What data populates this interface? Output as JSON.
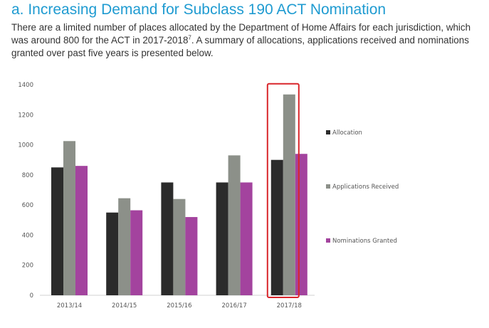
{
  "heading": "a. Increasing Demand for Subclass 190 ACT Nomination",
  "intro": {
    "text": "There are a limited number of places allocated by the Department of Home Affairs for each jurisdiction, which was around 800 for the ACT in 2017-2018",
    "footnote": "7",
    "text_after": ". A summary of allocations, applications received and nominations granted over past five years is presented below."
  },
  "chart_data": {
    "type": "bar",
    "categories": [
      "2013/14",
      "2014/15",
      "2015/16",
      "2016/17",
      "2017/18"
    ],
    "series": [
      {
        "name": "Allocation",
        "values": [
          850,
          550,
          750,
          750,
          900
        ],
        "color": "#2b2b2b"
      },
      {
        "name": "Applications Received",
        "values": [
          1025,
          645,
          640,
          930,
          1335
        ],
        "color": "#8c9089"
      },
      {
        "name": "Nominations Granted",
        "values": [
          860,
          565,
          520,
          750,
          940
        ],
        "color": "#a3439e"
      }
    ],
    "yticks": [
      0,
      200,
      400,
      600,
      800,
      1000,
      1200,
      1400
    ],
    "ylim": [
      0,
      1400
    ],
    "grid": false,
    "legend": "right",
    "highlight": {
      "category": "2017/18",
      "color": "#d9262b"
    }
  }
}
